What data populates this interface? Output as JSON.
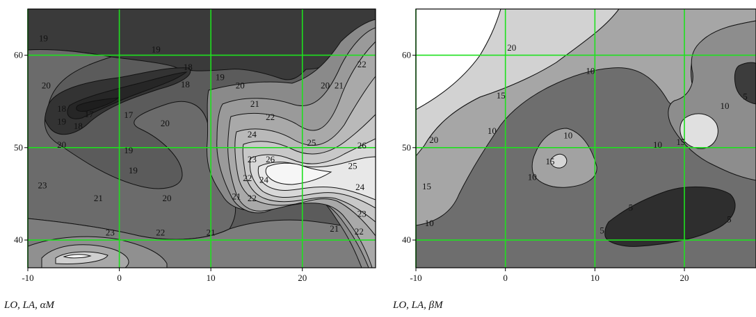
{
  "chart_data": [
    {
      "type": "heatmap",
      "subtype": "filled-contour",
      "xlabel": "LO, LA, αM",
      "xlim": [
        -10,
        28
      ],
      "ylim": [
        37,
        65
      ],
      "xticks": [
        -10,
        0,
        10,
        20
      ],
      "yticks": [
        40,
        50,
        60
      ],
      "grid": true,
      "grid_color": "#1ee01e",
      "contour_levels": [
        17,
        18,
        19,
        20,
        21,
        22,
        23,
        24,
        25,
        26
      ],
      "contour_labels": [
        {
          "text": "19",
          "x": -8.3,
          "y": 61.8
        },
        {
          "text": "19",
          "x": 4.0,
          "y": 60.6
        },
        {
          "text": "20",
          "x": -8.0,
          "y": 56.7
        },
        {
          "text": "18",
          "x": 7.5,
          "y": 58.7
        },
        {
          "text": "19",
          "x": 11.0,
          "y": 57.6
        },
        {
          "text": "18",
          "x": 7.2,
          "y": 56.8
        },
        {
          "text": "17",
          "x": 1.0,
          "y": 53.5
        },
        {
          "text": "18",
          "x": -6.3,
          "y": 54.2
        },
        {
          "text": "17",
          "x": -3.3,
          "y": 53.6
        },
        {
          "text": "19",
          "x": -6.3,
          "y": 52.8
        },
        {
          "text": "18",
          "x": -4.5,
          "y": 52.3
        },
        {
          "text": "20",
          "x": 5.0,
          "y": 52.6
        },
        {
          "text": "20",
          "x": -6.3,
          "y": 50.3
        },
        {
          "text": "19",
          "x": 1.0,
          "y": 49.7
        },
        {
          "text": "19",
          "x": 1.5,
          "y": 47.5
        },
        {
          "text": "20",
          "x": 13.2,
          "y": 56.7
        },
        {
          "text": "21",
          "x": 14.8,
          "y": 54.7
        },
        {
          "text": "22",
          "x": 16.5,
          "y": 53.3
        },
        {
          "text": "24",
          "x": 14.5,
          "y": 51.4
        },
        {
          "text": "25",
          "x": 21.0,
          "y": 50.5
        },
        {
          "text": "26",
          "x": 26.5,
          "y": 50.2
        },
        {
          "text": "23",
          "x": 14.5,
          "y": 48.7
        },
        {
          "text": "26",
          "x": 16.5,
          "y": 48.7
        },
        {
          "text": "25",
          "x": 25.5,
          "y": 48.0
        },
        {
          "text": "22",
          "x": 14.0,
          "y": 46.7
        },
        {
          "text": "24",
          "x": 15.8,
          "y": 46.5
        },
        {
          "text": "21",
          "x": 12.8,
          "y": 44.7
        },
        {
          "text": "22",
          "x": 14.5,
          "y": 44.5
        },
        {
          "text": "24",
          "x": 26.3,
          "y": 45.7
        },
        {
          "text": "23",
          "x": 26.5,
          "y": 42.8
        },
        {
          "text": "21",
          "x": 23.5,
          "y": 41.2
        },
        {
          "text": "22",
          "x": 26.2,
          "y": 40.9
        },
        {
          "text": "23",
          "x": -8.4,
          "y": 45.9
        },
        {
          "text": "21",
          "x": -2.3,
          "y": 44.5
        },
        {
          "text": "20",
          "x": 5.2,
          "y": 44.5
        },
        {
          "text": "23",
          "x": -1.0,
          "y": 40.8
        },
        {
          "text": "22",
          "x": 4.5,
          "y": 40.8
        },
        {
          "text": "21",
          "x": 10.0,
          "y": 40.8
        },
        {
          "text": "20",
          "x": 22.5,
          "y": 56.7
        },
        {
          "text": "21",
          "x": 24.0,
          "y": 56.7
        },
        {
          "text": "22",
          "x": 26.5,
          "y": 59.0
        }
      ]
    },
    {
      "type": "heatmap",
      "subtype": "filled-contour",
      "xlabel": "LO, LA, βM",
      "xlim": [
        -10,
        28
      ],
      "ylim": [
        37,
        65
      ],
      "xticks": [
        -10,
        0,
        10,
        20
      ],
      "yticks": [
        40,
        50,
        60
      ],
      "grid": true,
      "grid_color": "#1ee01e",
      "contour_levels": [
        5,
        10,
        15,
        20
      ],
      "contour_labels": [
        {
          "text": "20",
          "x": 0.7,
          "y": 60.8
        },
        {
          "text": "10",
          "x": 9.5,
          "y": 58.3
        },
        {
          "text": "15",
          "x": -0.5,
          "y": 55.6
        },
        {
          "text": "20",
          "x": -8.0,
          "y": 50.8
        },
        {
          "text": "10",
          "x": -1.5,
          "y": 51.8
        },
        {
          "text": "10",
          "x": 7.0,
          "y": 51.3
        },
        {
          "text": "15",
          "x": 5.0,
          "y": 48.5
        },
        {
          "text": "10",
          "x": 3.0,
          "y": 46.8
        },
        {
          "text": "15",
          "x": -8.8,
          "y": 45.8
        },
        {
          "text": "10",
          "x": -8.5,
          "y": 41.8
        },
        {
          "text": "10",
          "x": 17.0,
          "y": 50.3
        },
        {
          "text": "15",
          "x": 19.6,
          "y": 50.6
        },
        {
          "text": "10",
          "x": 24.5,
          "y": 54.5
        },
        {
          "text": "5",
          "x": 26.8,
          "y": 55.5
        },
        {
          "text": "5",
          "x": 14.0,
          "y": 43.5
        },
        {
          "text": "5",
          "x": 10.8,
          "y": 41.0
        },
        {
          "text": "5",
          "x": 25.0,
          "y": 42.2
        }
      ]
    }
  ]
}
